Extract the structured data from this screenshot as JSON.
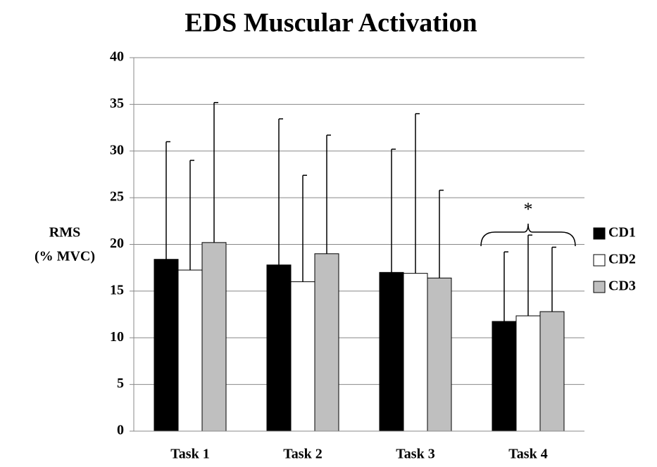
{
  "chart_data": {
    "type": "bar",
    "title": "EDS Muscular Activation",
    "ylabel": [
      "RMS",
      "(% MVC)"
    ],
    "categories": [
      "Task 1",
      "Task 2",
      "Task 3",
      "Task 4"
    ],
    "series": [
      {
        "name": "CD1",
        "color": "#000000",
        "values": [
          18.4,
          17.8,
          17.0,
          11.75
        ],
        "errors": [
          12.6,
          15.65,
          13.2,
          7.45
        ]
      },
      {
        "name": "CD2",
        "color": "#ffffff",
        "values": [
          17.25,
          16.0,
          16.9,
          12.35
        ],
        "errors": [
          11.75,
          11.4,
          17.1,
          8.65
        ]
      },
      {
        "name": "CD3",
        "color": "#bfbfbf",
        "values": [
          20.2,
          19.0,
          16.4,
          12.8
        ],
        "errors": [
          15.0,
          12.7,
          9.4,
          6.9
        ]
      }
    ],
    "annotations": [
      "*"
    ],
    "ylim": [
      0,
      40
    ],
    "yticks": [
      0,
      5,
      10,
      15,
      20,
      25,
      30,
      35,
      40
    ],
    "grid": true,
    "legend": "right"
  }
}
